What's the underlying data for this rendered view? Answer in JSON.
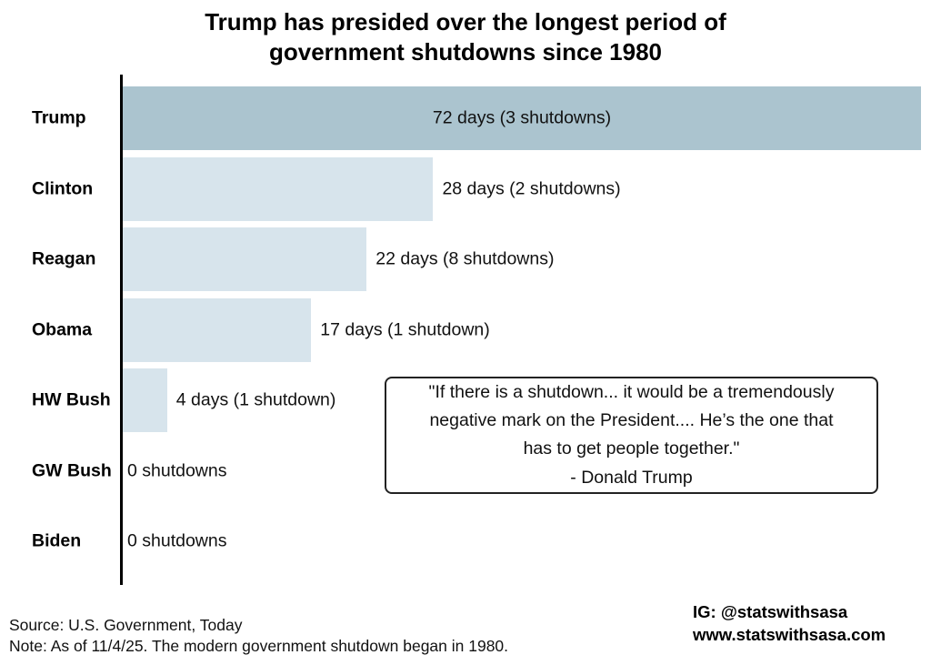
{
  "chart_data": {
    "type": "bar",
    "orientation": "horizontal",
    "title": "Trump has presided over the longest period of government shutdowns since 1980",
    "title_line1": "Trump has presided over the longest period of",
    "title_line2": "government shutdowns since 1980",
    "xlabel": "",
    "ylabel": "",
    "x_unit": "days",
    "xlim": [
      0,
      72
    ],
    "grid": false,
    "legend": false,
    "categories": [
      "Trump",
      "Clinton",
      "Reagan",
      "Obama",
      "HW Bush",
      "GW Bush",
      "Biden"
    ],
    "values": [
      72,
      28,
      22,
      17,
      4,
      0,
      0
    ],
    "shutdown_counts": [
      3,
      2,
      8,
      1,
      1,
      0,
      0
    ],
    "rows": [
      {
        "president": "Trump",
        "days": 72,
        "shutdowns": 3,
        "label": "72 days (3 shutdowns)",
        "label_position": "inside-center",
        "highlight": true
      },
      {
        "president": "Clinton",
        "days": 28,
        "shutdowns": 2,
        "label": "28 days (2 shutdowns)",
        "label_position": "right",
        "highlight": false
      },
      {
        "president": "Reagan",
        "days": 22,
        "shutdowns": 8,
        "label": "22 days (8 shutdowns)",
        "label_position": "right",
        "highlight": false
      },
      {
        "president": "Obama",
        "days": 17,
        "shutdowns": 1,
        "label": "17 days (1 shutdown)",
        "label_position": "right",
        "highlight": false
      },
      {
        "president": "HW Bush",
        "days": 4,
        "shutdowns": 1,
        "label": "4 days (1 shutdown)",
        "label_position": "right",
        "highlight": false
      },
      {
        "president": "GW Bush",
        "days": 0,
        "shutdowns": 0,
        "label": "0 shutdowns",
        "label_position": "axis",
        "highlight": false
      },
      {
        "president": "Biden",
        "days": 0,
        "shutdowns": 0,
        "label": "0 shutdowns",
        "label_position": "axis",
        "highlight": false
      }
    ],
    "colors": {
      "highlight_bar": "#abc4cf",
      "bar": "#d7e4ec",
      "axis": "#000000",
      "text": "#111111"
    }
  },
  "quote_box": {
    "line1": "\"If there is a shutdown... it would be a tremendously",
    "line2": "negative mark on the President.... He’s the one that",
    "line3": "has to get people together.\"",
    "line4": "- Donald Trump"
  },
  "footer": {
    "source": "Source: U.S. Government, Today",
    "note": "Note: As of 11/4/25. The modern government shutdown began in 1980.",
    "ig": "IG: @statswithsasa",
    "website": "www.statswithsasa.com"
  }
}
